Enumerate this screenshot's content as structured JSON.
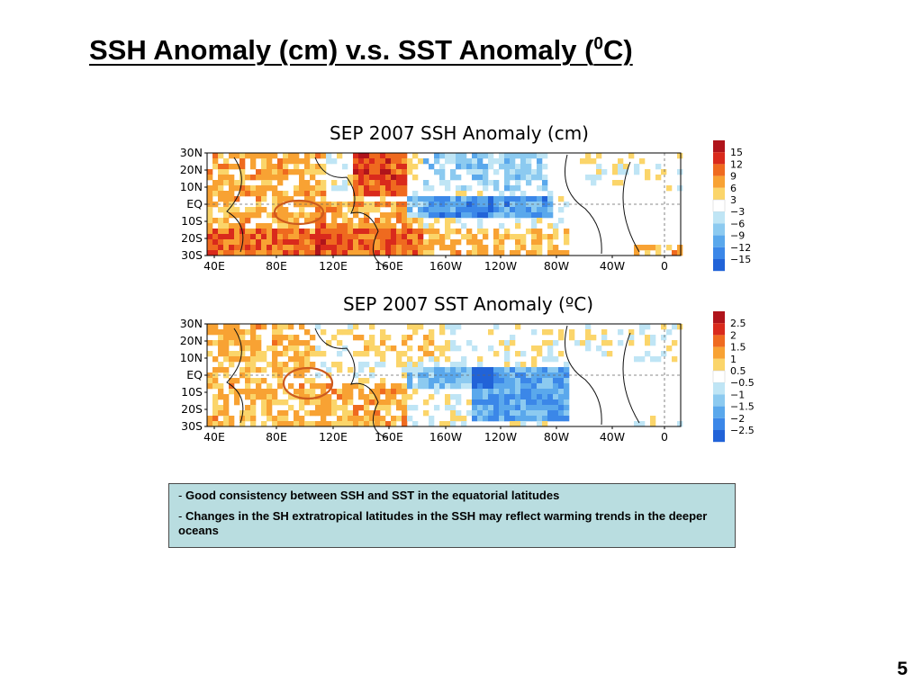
{
  "slide": {
    "title_prefix": "SSH Anomaly (cm) v.s. SST Anomaly (",
    "title_sup": "0",
    "title_suffix": "C)",
    "page_number": "5"
  },
  "maps": [
    {
      "title": "SEP 2007 SSH Anomaly (cm)",
      "lat_labels": [
        "30N",
        "20N",
        "10N",
        "EQ",
        "10S",
        "20S",
        "30S"
      ],
      "lon_labels": [
        "40E",
        "80E",
        "120E",
        "160E",
        "160W",
        "120W",
        "80W",
        "40W",
        "0"
      ],
      "colorbar": {
        "labels": [
          "15",
          "12",
          "9",
          "6",
          "3",
          "−3",
          "−6",
          "−9",
          "−12",
          "−15"
        ],
        "colors": [
          "#b0141b",
          "#d92a1c",
          "#ef6a1f",
          "#f8a233",
          "#fbd56a",
          "#ffffff",
          "#bfe5f5",
          "#8ccaf0",
          "#5aa8ec",
          "#3b87e8",
          "#2163d8"
        ]
      },
      "highlight": "orange ellipse over Maritime Continent"
    },
    {
      "title": "SEP 2007 SST Anomaly (ºC)",
      "lat_labels": [
        "30N",
        "20N",
        "10N",
        "EQ",
        "10S",
        "20S",
        "30S"
      ],
      "lon_labels": [
        "40E",
        "80E",
        "120E",
        "160E",
        "160W",
        "120W",
        "80W",
        "40W",
        "0"
      ],
      "colorbar": {
        "labels": [
          "2.5",
          "2",
          "1.5",
          "1",
          "0.5",
          "−0.5",
          "−1",
          "−1.5",
          "−2",
          "−2.5"
        ],
        "colors": [
          "#b0141b",
          "#d92a1c",
          "#ef6a1f",
          "#f8a233",
          "#fbd56a",
          "#ffffff",
          "#bfe5f5",
          "#8ccaf0",
          "#5aa8ec",
          "#3b87e8",
          "#2163d8"
        ]
      },
      "highlight": "orange ellipse over Maritime Continent"
    }
  ],
  "notes": [
    {
      "dash": "-",
      "text": "Good consistency between SSH and SST in the equatorial latitudes"
    },
    {
      "dash": "-",
      "text": "Changes in the SH extratropical latitudes in the SSH may reflect warming trends in the deeper oceans"
    }
  ],
  "colors": {
    "notes_background": "#b9dde0",
    "ellipse": "#cc5a1e"
  }
}
